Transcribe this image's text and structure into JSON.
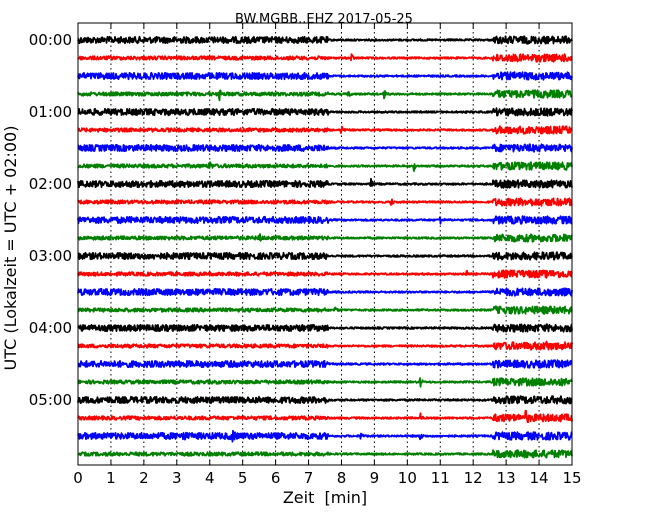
{
  "chart_data": {
    "type": "line",
    "chart_kind": "helicorder (seismogram drum plot)",
    "title": "BW.MGBB..EHZ 2017-05-25",
    "xlabel": "Zeit  [min]",
    "ylabel": "UTC (Lokalzeit = UTC + 02:00)",
    "xlim": [
      0,
      15
    ],
    "x_ticks": [
      "0",
      "1",
      "2",
      "3",
      "4",
      "5",
      "6",
      "7",
      "8",
      "9",
      "10",
      "11",
      "12",
      "13",
      "14",
      "15"
    ],
    "y_tick_labels": [
      "00:00",
      "01:00",
      "02:00",
      "03:00",
      "04:00",
      "05:00"
    ],
    "trace_interval_minutes": 15,
    "trace_count": 24,
    "trace_colors": [
      "#000000",
      "#ff0000",
      "#0000ff",
      "#008000"
    ],
    "grid": "vertical dotted lines at each minute",
    "noisy_segments_minutes": [
      [
        0,
        7.6
      ],
      [
        12.6,
        15
      ]
    ],
    "traces": [
      {
        "start": "00:00",
        "color": "#000000",
        "events_min": []
      },
      {
        "start": "00:15",
        "color": "#ff0000",
        "events_min": [
          8.3
        ]
      },
      {
        "start": "00:30",
        "color": "#0000ff",
        "events_min": []
      },
      {
        "start": "00:45",
        "color": "#008000",
        "events_min": [
          4.3,
          8.2,
          9.3
        ]
      },
      {
        "start": "01:00",
        "color": "#000000",
        "events_min": []
      },
      {
        "start": "01:15",
        "color": "#ff0000",
        "events_min": [
          8.0
        ]
      },
      {
        "start": "01:30",
        "color": "#0000ff",
        "events_min": []
      },
      {
        "start": "01:45",
        "color": "#008000",
        "events_min": [
          4.0,
          10.2
        ]
      },
      {
        "start": "02:00",
        "color": "#000000",
        "events_min": [
          8.9
        ]
      },
      {
        "start": "02:15",
        "color": "#ff0000",
        "events_min": [
          9.5
        ]
      },
      {
        "start": "02:30",
        "color": "#0000ff",
        "events_min": [
          11.0
        ]
      },
      {
        "start": "02:45",
        "color": "#008000",
        "events_min": [
          5.5
        ]
      },
      {
        "start": "03:00",
        "color": "#000000",
        "events_min": []
      },
      {
        "start": "03:15",
        "color": "#ff0000",
        "events_min": [
          11.8
        ]
      },
      {
        "start": "03:30",
        "color": "#0000ff",
        "events_min": []
      },
      {
        "start": "03:45",
        "color": "#008000",
        "events_min": [
          7.8
        ]
      },
      {
        "start": "04:00",
        "color": "#000000",
        "events_min": []
      },
      {
        "start": "04:15",
        "color": "#ff0000",
        "events_min": [
          14.2
        ]
      },
      {
        "start": "04:30",
        "color": "#0000ff",
        "events_min": []
      },
      {
        "start": "04:45",
        "color": "#008000",
        "events_min": [
          10.4
        ]
      },
      {
        "start": "05:00",
        "color": "#000000",
        "events_min": []
      },
      {
        "start": "05:15",
        "color": "#ff0000",
        "events_min": [
          10.4,
          13.6
        ]
      },
      {
        "start": "05:30",
        "color": "#0000ff",
        "events_min": [
          3.2,
          4.7,
          8.6,
          10.4
        ]
      },
      {
        "start": "05:45",
        "color": "#008000",
        "events_min": []
      }
    ]
  }
}
